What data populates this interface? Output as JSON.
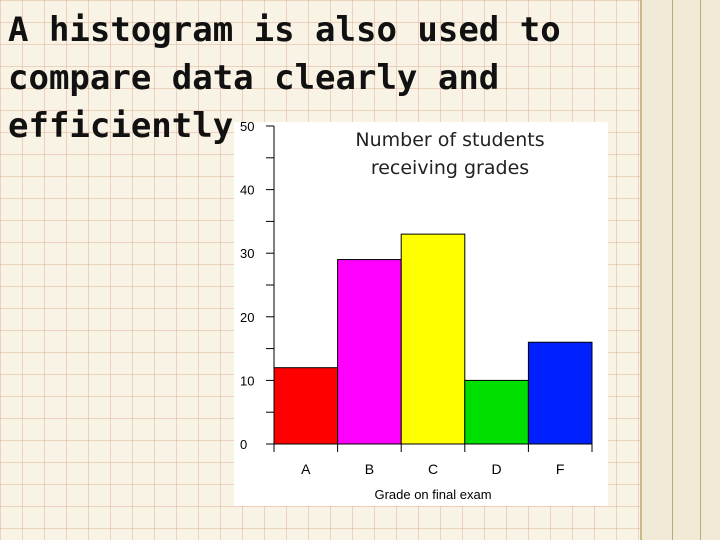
{
  "slide": {
    "title_lines": [
      "A histogram is also used to",
      "compare data clearly and",
      "efficiently."
    ]
  },
  "chart_data": {
    "type": "bar",
    "title_lines": [
      "Number of students",
      "receiving grades"
    ],
    "categories": [
      "A",
      "B",
      "C",
      "D",
      "F"
    ],
    "values": [
      12,
      29,
      33,
      10,
      16
    ],
    "colors": [
      "#ff0000",
      "#ff00ff",
      "#ffff00",
      "#00e000",
      "#0020ff"
    ],
    "ylim": [
      0,
      50
    ],
    "yticks": [
      "0",
      "10",
      "20",
      "30",
      "40",
      "50"
    ],
    "xlabel": "Grade on final exam",
    "ylabel": "",
    "grid": false
  }
}
